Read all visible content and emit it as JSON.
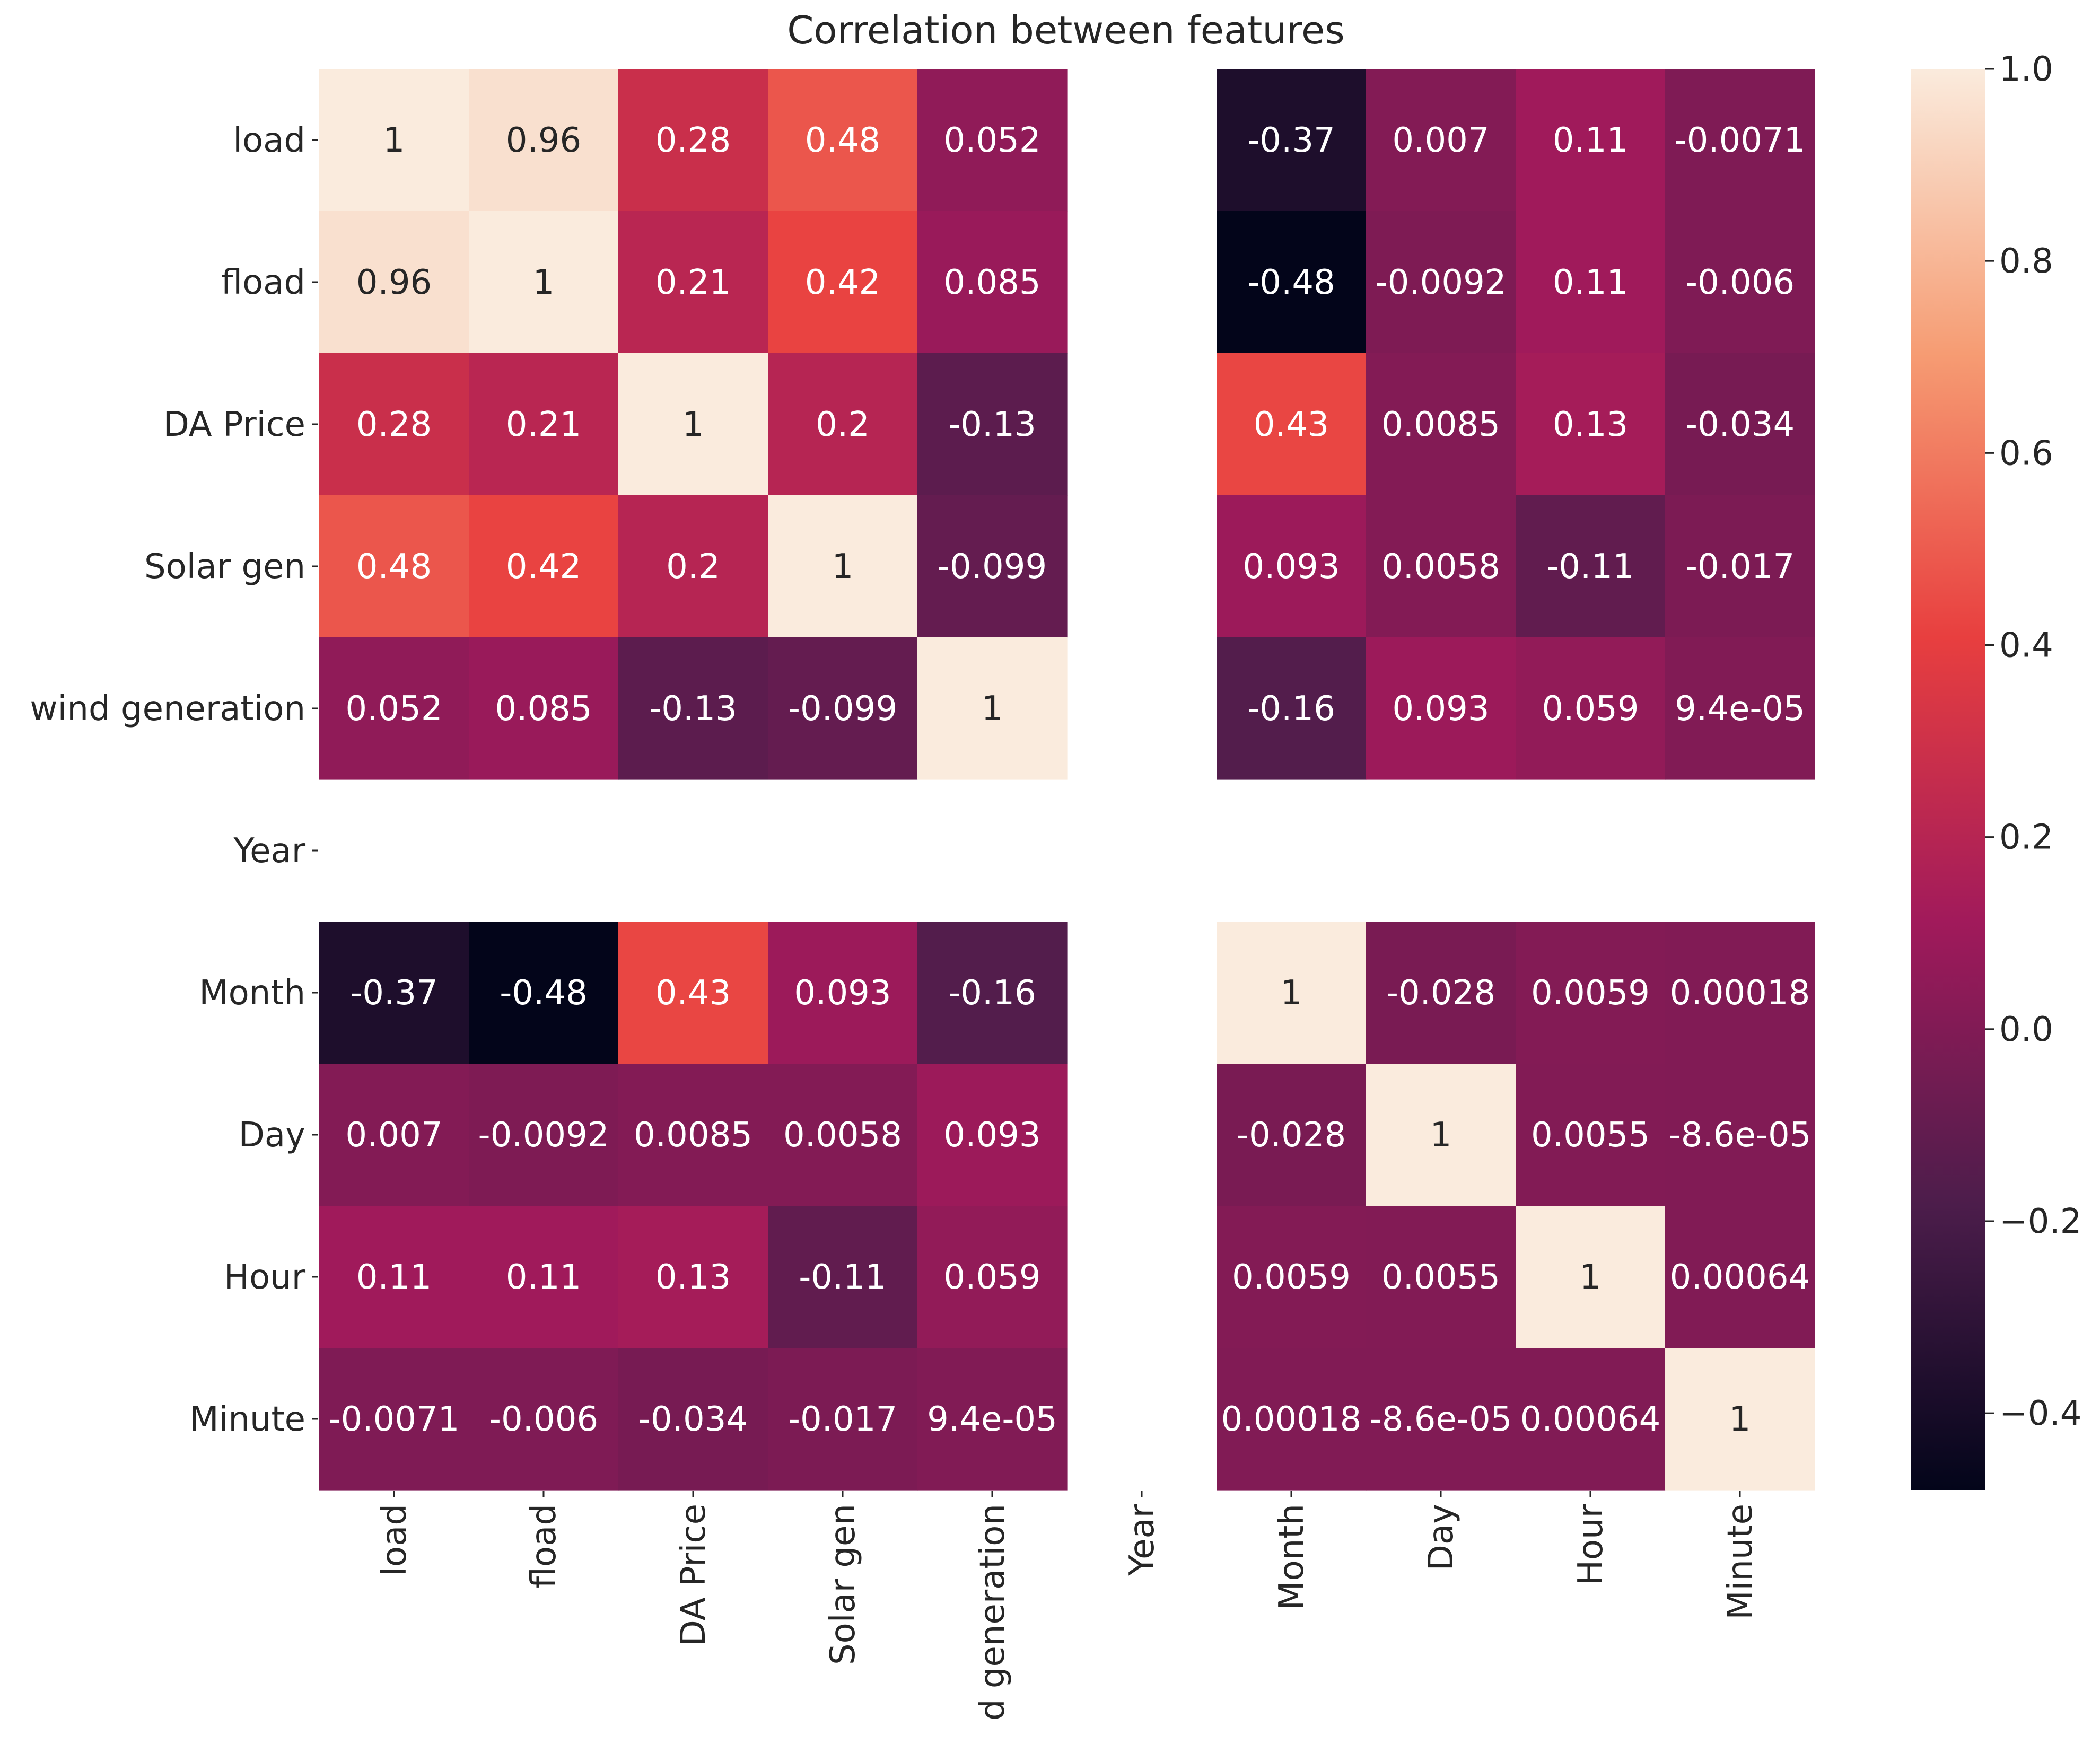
{
  "chart_data": {
    "type": "heatmap",
    "title": "Correlation between features",
    "row_labels": [
      "load",
      "fload",
      "DA Price",
      "Solar gen",
      "wind generation",
      "Year",
      "Month",
      "Day",
      "Hour",
      "Minute"
    ],
    "col_labels": [
      "load",
      "fload",
      "DA Price",
      "Solar gen",
      "d generation",
      "Year",
      "Month",
      "Day",
      "Hour",
      "Minute"
    ],
    "values": [
      [
        1,
        0.96,
        0.28,
        0.48,
        0.052,
        null,
        -0.37,
        0.007,
        0.11,
        -0.0071
      ],
      [
        0.96,
        1,
        0.21,
        0.42,
        0.085,
        null,
        -0.48,
        -0.0092,
        0.11,
        -0.006
      ],
      [
        0.28,
        0.21,
        1,
        0.2,
        -0.13,
        null,
        0.43,
        0.0085,
        0.13,
        -0.034
      ],
      [
        0.48,
        0.42,
        0.2,
        1,
        -0.099,
        null,
        0.093,
        0.0058,
        -0.11,
        -0.017
      ],
      [
        0.052,
        0.085,
        -0.13,
        -0.099,
        1,
        null,
        -0.16,
        0.093,
        0.059,
        9.4e-05
      ],
      [
        null,
        null,
        null,
        null,
        null,
        null,
        null,
        null,
        null,
        null
      ],
      [
        -0.37,
        -0.48,
        0.43,
        0.093,
        -0.16,
        null,
        1,
        -0.028,
        0.0059,
        0.00018
      ],
      [
        0.007,
        -0.0092,
        0.0085,
        0.0058,
        0.093,
        null,
        -0.028,
        1,
        0.0055,
        -8.6e-05
      ],
      [
        0.11,
        0.11,
        0.13,
        -0.11,
        0.059,
        null,
        0.0059,
        0.0055,
        1,
        0.00064
      ],
      [
        -0.0071,
        -0.006,
        -0.034,
        -0.017,
        9.4e-05,
        null,
        0.00018,
        -8.6e-05,
        0.00064,
        1
      ]
    ],
    "annotations": [
      [
        "1",
        "0.96",
        "0.28",
        "0.48",
        "0.052",
        "",
        "-0.37",
        "0.007",
        "0.11",
        "-0.0071"
      ],
      [
        "0.96",
        "1",
        "0.21",
        "0.42",
        "0.085",
        "",
        "-0.48",
        "-0.0092",
        "0.11",
        "-0.006"
      ],
      [
        "0.28",
        "0.21",
        "1",
        "0.2",
        "-0.13",
        "",
        "0.43",
        "0.0085",
        "0.13",
        "-0.034"
      ],
      [
        "0.48",
        "0.42",
        "0.2",
        "1",
        "-0.099",
        "",
        "0.093",
        "0.0058",
        "-0.11",
        "-0.017"
      ],
      [
        "0.052",
        "0.085",
        "-0.13",
        "-0.099",
        "1",
        "",
        "-0.16",
        "0.093",
        "0.059",
        "9.4e-05"
      ],
      [
        "",
        "",
        "",
        "",
        "",
        "",
        "",
        "",
        "",
        ""
      ],
      [
        "-0.37",
        "-0.48",
        "0.43",
        "0.093",
        "-0.16",
        "",
        "1",
        "-0.028",
        "0.0059",
        "0.00018"
      ],
      [
        "0.007",
        "-0.0092",
        "0.0085",
        "0.0058",
        "0.093",
        "",
        "-0.028",
        "1",
        "0.0055",
        "-8.6e-05"
      ],
      [
        "0.11",
        "0.11",
        "0.13",
        "-0.11",
        "0.059",
        "",
        "0.0059",
        "0.0055",
        "1",
        "0.00064"
      ],
      [
        "-0.0071",
        "-0.006",
        "-0.034",
        "-0.017",
        "9.4e-05",
        "",
        "0.00018",
        "-8.6e-05",
        "0.00064",
        "1"
      ]
    ],
    "colorbar": {
      "min": -0.48,
      "max": 1.0,
      "ticks": [
        1.0,
        0.8,
        0.6,
        0.4,
        0.2,
        0.0,
        -0.2,
        -0.4
      ],
      "tick_labels": [
        "1.0",
        "0.8",
        "0.6",
        "0.4",
        "0.2",
        "0.0",
        "−0.2",
        "−0.4"
      ],
      "colormap": "rocket",
      "stops": [
        "#03051a",
        "#4c1d4b",
        "#a11a5b",
        "#e83f3f",
        "#f69c73",
        "#faebdd"
      ]
    },
    "text_colors": {
      "dark_cell_text": "#ffffff",
      "light_cell_text": "#262626"
    },
    "xlabel": "",
    "ylabel": ""
  }
}
